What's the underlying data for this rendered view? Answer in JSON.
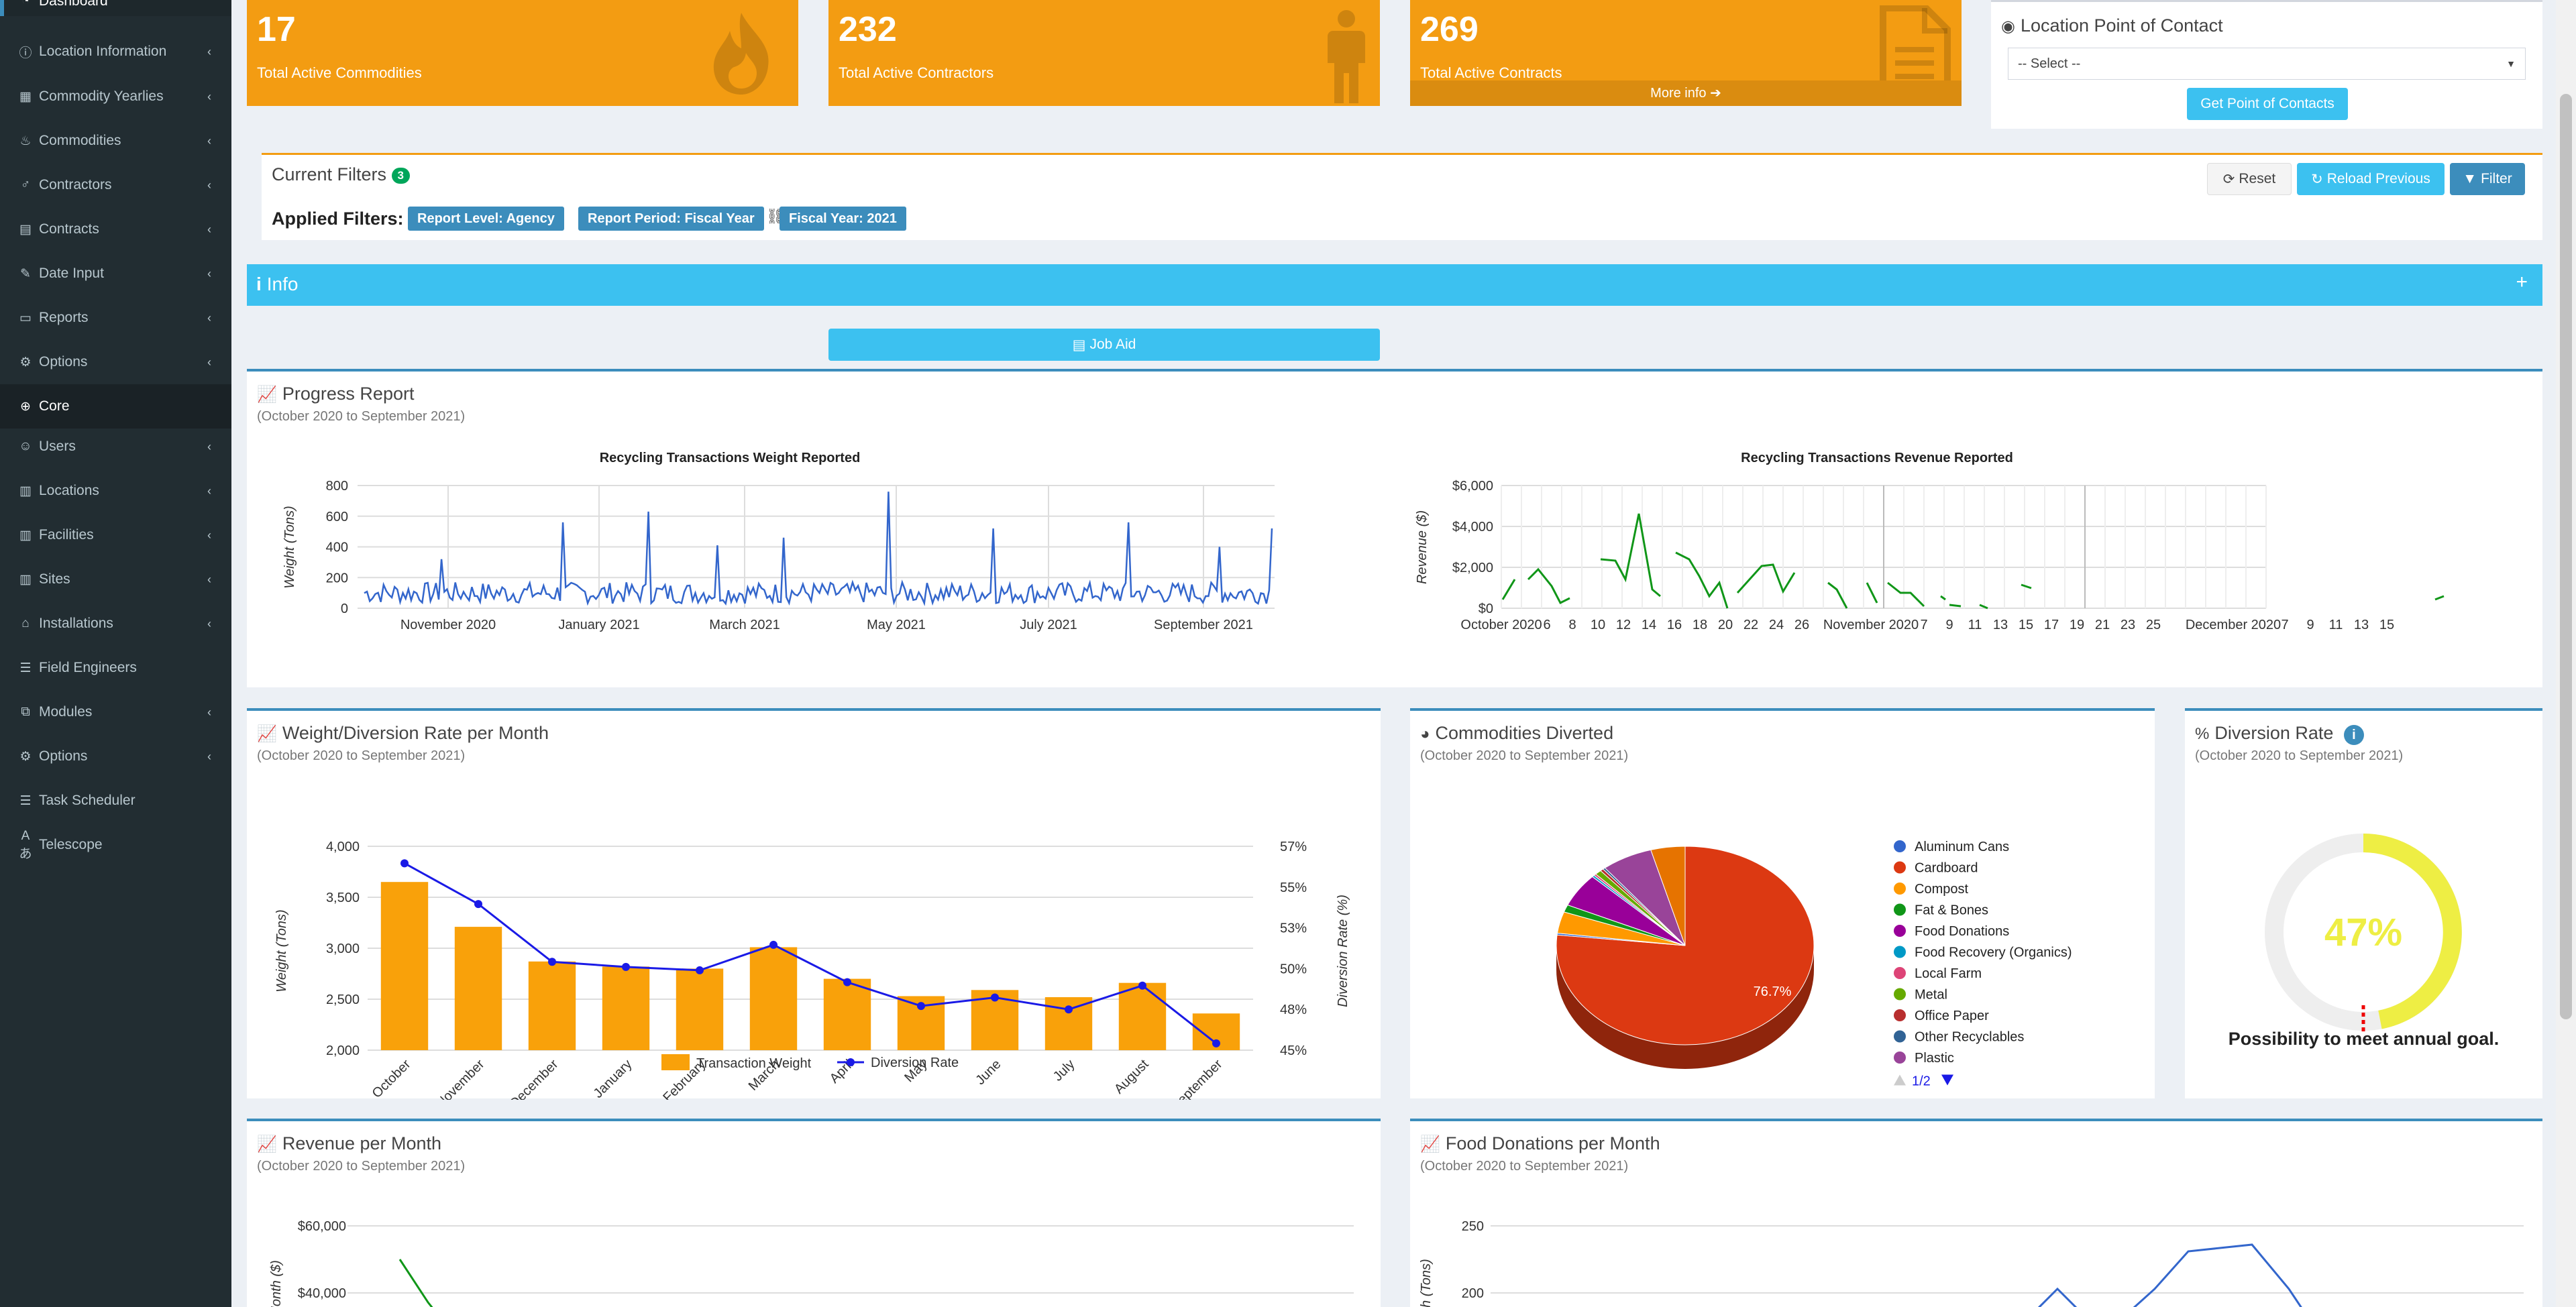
{
  "sidebar": {
    "items": [
      {
        "label": "Dashboard",
        "icon": "dashboard-icon",
        "glyph": "◔",
        "chevron": false
      },
      {
        "label": "Location Information",
        "icon": "info-icon",
        "glyph": "ⓘ",
        "chevron": true
      },
      {
        "label": "Commodity Yearlies",
        "icon": "calendar-icon",
        "glyph": "▦",
        "chevron": true
      },
      {
        "label": "Commodities",
        "icon": "fire-icon",
        "glyph": "♨",
        "chevron": true
      },
      {
        "label": "Contractors",
        "icon": "male-icon",
        "glyph": "♂",
        "chevron": true
      },
      {
        "label": "Contracts",
        "icon": "file-icon",
        "glyph": "▤",
        "chevron": true
      },
      {
        "label": "Date Input",
        "icon": "edit-icon",
        "glyph": "✎",
        "chevron": true
      },
      {
        "label": "Reports",
        "icon": "folder-icon",
        "glyph": "▭",
        "chevron": true
      },
      {
        "label": "Options",
        "icon": "cogs-icon",
        "glyph": "⚙",
        "chevron": true
      },
      {
        "label": "Core",
        "icon": "globe-icon",
        "glyph": "⊕",
        "chevron": false
      },
      {
        "label": "Users",
        "icon": "users-icon",
        "glyph": "☺",
        "chevron": true
      },
      {
        "label": "Locations",
        "icon": "building-icon",
        "glyph": "▥",
        "chevron": true
      },
      {
        "label": "Facilities",
        "icon": "building-icon",
        "glyph": "▥",
        "chevron": true
      },
      {
        "label": "Sites",
        "icon": "building-icon",
        "glyph": "▥",
        "chevron": true
      },
      {
        "label": "Installations",
        "icon": "bank-icon",
        "glyph": "⌂",
        "chevron": true
      },
      {
        "label": "Field Engineers",
        "icon": "list-icon",
        "glyph": "☰",
        "chevron": false
      },
      {
        "label": "Modules",
        "icon": "sitemap-icon",
        "glyph": "⧉",
        "chevron": true
      },
      {
        "label": "Options",
        "icon": "cogs-icon",
        "glyph": "⚙",
        "chevron": true
      },
      {
        "label": "Task Scheduler",
        "icon": "list-icon",
        "glyph": "☰",
        "chevron": false
      },
      {
        "label": "Telescope",
        "icon": "translate-icon",
        "glyph": "Aあ",
        "chevron": false
      }
    ]
  },
  "stats": {
    "commodities": {
      "value": "17",
      "label": "Total Active Commodities"
    },
    "contractors": {
      "value": "232",
      "label": "Total Active Contractors"
    },
    "contracts": {
      "value": "269",
      "label": "Total Active Contracts",
      "more": "More info ➔"
    }
  },
  "contact": {
    "title": "Location Point of Contact",
    "select_value": "-- Select --",
    "button": "Get Point of Contacts"
  },
  "filters": {
    "title": "Current Filters",
    "count": "3",
    "applied_label": "Applied Filters:",
    "tags": [
      "Report Level: Agency",
      "Report Period: Fiscal Year",
      "Fiscal Year: 2021"
    ],
    "reset": "Reset",
    "reload": "Reload Previous",
    "filter": "Filter"
  },
  "info_bar": {
    "label": "Info",
    "plus": "+"
  },
  "job_aid": "Job Aid",
  "progress": {
    "title": "Progress Report",
    "subtitle": "(October 2020 to September 2021)"
  },
  "weight_chart": {
    "title": "Recycling Transactions Weight Reported",
    "ylabel": "Weight (Tons)",
    "yticks": [
      "0",
      "200",
      "400",
      "600",
      "800"
    ],
    "xticks": [
      "November 2020",
      "January 2021",
      "March 2021",
      "May 2021",
      "July 2021",
      "September 2021"
    ],
    "color": "#3366cc"
  },
  "revenue_chart": {
    "title": "Recycling Transactions Revenue Reported",
    "ylabel": "Revenue ($)",
    "yticks": [
      "$0",
      "$2,000",
      "$4,000",
      "$6,000"
    ],
    "xticks": [
      "October 2020",
      "6",
      "8",
      "10",
      "12",
      "14",
      "16",
      "18",
      "20",
      "22",
      "24",
      "26",
      "November 2020",
      "7",
      "9",
      "11",
      "13",
      "15",
      "17",
      "19",
      "21",
      "23",
      "25",
      "December 2020",
      "7",
      "9",
      "11",
      "13",
      "15"
    ],
    "color": "#109618"
  },
  "wdr": {
    "title": "Weight/Diversion Rate per Month",
    "subtitle": "(October 2020 to September 2021)"
  },
  "chart_data": [
    {
      "type": "bar",
      "title": "Weight/Diversion Rate per Month",
      "categories": [
        "October",
        "November",
        "December",
        "January",
        "February",
        "March",
        "April",
        "May",
        "June",
        "July",
        "August",
        "September"
      ],
      "ylabel": "Weight (Tons)",
      "y2label": "Diversion Rate (%)",
      "ylim": [
        2000,
        4000
      ],
      "y2lim": [
        45,
        57
      ],
      "yticks": [
        "2,000",
        "2,500",
        "3,000",
        "3,500",
        "4,000"
      ],
      "y2ticks": [
        "45%",
        "48%",
        "50%",
        "53%",
        "55%",
        "57%"
      ],
      "series": [
        {
          "name": "Transaction Weight",
          "type": "bar",
          "color": "#f9a10a",
          "values": [
            3650,
            3210,
            2870,
            2820,
            2800,
            3010,
            2700,
            2530,
            2590,
            2520,
            2660,
            2360
          ]
        },
        {
          "name": "Diversion Rate",
          "type": "line",
          "color": "#1a1ae6",
          "values": [
            56.0,
            53.6,
            50.2,
            49.9,
            49.7,
            51.2,
            49.0,
            47.6,
            48.1,
            47.4,
            48.8,
            45.4
          ]
        }
      ],
      "legend": "bottom"
    },
    {
      "type": "pie",
      "title": "Commodities Diverted",
      "categories": [
        "Aluminum Cans",
        "Cardboard",
        "Compost",
        "Fat & Bones",
        "Food Donations",
        "Food Recovery (Organics)",
        "Local Farm",
        "Metal",
        "Office Paper",
        "Other Recyclables",
        "Plastic"
      ],
      "colors": [
        "#3366cc",
        "#dc3912",
        "#ff9900",
        "#109618",
        "#990099",
        "#0099c6",
        "#dd4477",
        "#66aa00",
        "#b82e2e",
        "#316395",
        "#994499"
      ],
      "values": [
        0.3,
        76.7,
        3.5,
        1.2,
        5.5,
        0.3,
        0.3,
        0.8,
        0.4,
        0.3,
        6.4
      ],
      "extra_slice": {
        "color": "#e67300",
        "value": 4.3
      },
      "data_labels": [
        "76.7%"
      ],
      "legend": "right",
      "legend_page": "1/2"
    },
    {
      "type": "line",
      "title": "Food Donations per Month",
      "ylabel": "Month (Tons)",
      "yticks": [
        "200",
        "250"
      ],
      "color": "#3366cc"
    }
  ],
  "commodities": {
    "title": "Commodities Diverted",
    "subtitle": "(October 2020 to September 2021)",
    "pie_label": "76.7%",
    "page": "1/2"
  },
  "diversion": {
    "title": "Diversion Rate",
    "subtitle": "(October 2020 to September 2021)",
    "value": 47,
    "value_label": "47%",
    "caption": "Possibility to meet annual goal.",
    "color": "#eeee44"
  },
  "revenue_month": {
    "title": "Revenue per Month",
    "subtitle": "(October 2020 to September 2021)",
    "ylabel": "Month ($)",
    "yticks": [
      "$60,000",
      "$40,000"
    ]
  },
  "food_month": {
    "title": "Food Donations per Month",
    "subtitle": "(October 2020 to September 2021)",
    "ylabel": "nth (Tons)",
    "yticks": [
      "250",
      "200"
    ]
  }
}
